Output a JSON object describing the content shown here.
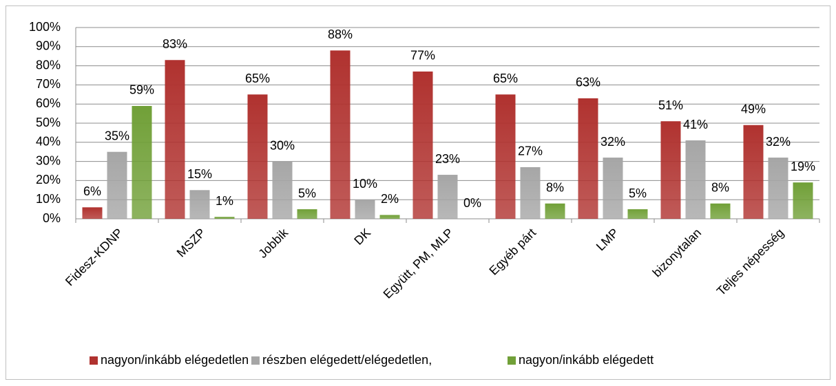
{
  "chart_data": {
    "type": "bar",
    "categories": [
      "Fidesz-KDNP",
      "MSZP",
      "Jobbik",
      "DK",
      "Együtt, PM, MLP",
      "Egyéb párt",
      "LMP",
      "bizonytalan",
      "Teljes népesség"
    ],
    "series": [
      {
        "name": "nagyon/inkább elégedetlen",
        "color": "#b0322f",
        "values": [
          6,
          83,
          65,
          88,
          77,
          65,
          63,
          51,
          49
        ],
        "value_labels": [
          "6%",
          "83%",
          "65%",
          "88%",
          "77%",
          "65%",
          "63%",
          "51%",
          "49%"
        ]
      },
      {
        "name": "részben elégedett/elégedetlen,",
        "color": "#a6a6a6",
        "values": [
          35,
          15,
          30,
          10,
          23,
          27,
          32,
          41,
          32
        ],
        "value_labels": [
          "35%",
          "15%",
          "30%",
          "10%",
          "23%",
          "27%",
          "32%",
          "41%",
          "32%"
        ]
      },
      {
        "name": "nagyon/inkább elégedett",
        "color": "#71a038",
        "values": [
          59,
          1,
          5,
          2,
          0,
          8,
          5,
          8,
          19
        ],
        "value_labels": [
          "59%",
          "1%",
          "5%",
          "2%",
          "0%",
          "8%",
          "5%",
          "8%",
          "19%"
        ]
      }
    ],
    "ylim": [
      0,
      100
    ],
    "yticks": [
      {
        "value": 0,
        "label": "0%"
      },
      {
        "value": 10,
        "label": "10%"
      },
      {
        "value": 20,
        "label": "20%"
      },
      {
        "value": 30,
        "label": "30%"
      },
      {
        "value": 40,
        "label": "40%"
      },
      {
        "value": 50,
        "label": "50%"
      },
      {
        "value": 60,
        "label": "60%"
      },
      {
        "value": 70,
        "label": "70%"
      },
      {
        "value": 80,
        "label": "80%"
      },
      {
        "value": 90,
        "label": "90%"
      },
      {
        "value": 100,
        "label": "100%"
      }
    ],
    "grid": true,
    "legend": "bottom"
  }
}
